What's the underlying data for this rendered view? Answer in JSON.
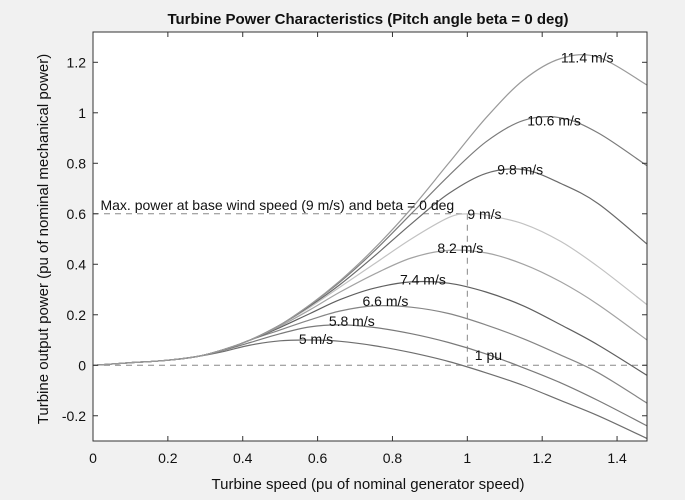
{
  "chart_data": {
    "type": "line",
    "title": "Turbine Power Characteristics (Pitch angle beta = 0 deg)",
    "xlabel": "Turbine speed (pu of nominal generator speed)",
    "ylabel": "Turbine output power (pu of nominal mechanical power)",
    "xlim": [
      0,
      1.48
    ],
    "ylim": [
      -0.3,
      1.32
    ],
    "xticks": [
      0,
      0.2,
      0.4,
      0.6,
      0.8,
      1,
      1.2,
      1.4
    ],
    "xtick_labels": [
      "0",
      "0.2",
      "0.4",
      "0.6",
      "0.8",
      "1",
      "1.2",
      "1.4"
    ],
    "yticks": [
      -0.2,
      0,
      0.2,
      0.4,
      0.6,
      0.8,
      1,
      1.2
    ],
    "ytick_labels": [
      "-0.2",
      "0",
      "0.2",
      "0.4",
      "0.6",
      "0.8",
      "1",
      "1.2"
    ],
    "grid": false,
    "series": [
      {
        "name": "5 m/s",
        "color": "#6e6e6e",
        "x": [
          0,
          0.1,
          0.2,
          0.28,
          0.35,
          0.42,
          0.5,
          0.58,
          0.66,
          0.75,
          0.85,
          0.95,
          1.05,
          1.15,
          1.25,
          1.35,
          1.48
        ],
        "values": [
          0,
          0.01,
          0.02,
          0.035,
          0.055,
          0.08,
          0.097,
          0.1,
          0.095,
          0.078,
          0.05,
          0.015,
          -0.03,
          -0.08,
          -0.14,
          -0.2,
          -0.29
        ]
      },
      {
        "name": "5.8 m/s",
        "color": "#7a7a7a",
        "x": [
          0,
          0.1,
          0.2,
          0.28,
          0.35,
          0.42,
          0.5,
          0.58,
          0.66,
          0.75,
          0.85,
          0.95,
          1.05,
          1.15,
          1.25,
          1.35,
          1.48
        ],
        "values": [
          0,
          0.01,
          0.02,
          0.035,
          0.06,
          0.09,
          0.125,
          0.152,
          0.16,
          0.15,
          0.125,
          0.09,
          0.045,
          -0.01,
          -0.07,
          -0.14,
          -0.24
        ]
      },
      {
        "name": "6.6 m/s",
        "color": "#858585",
        "x": [
          0,
          0.1,
          0.2,
          0.28,
          0.35,
          0.42,
          0.5,
          0.58,
          0.66,
          0.75,
          0.85,
          0.95,
          1.05,
          1.15,
          1.25,
          1.35,
          1.48
        ],
        "values": [
          0,
          0.01,
          0.02,
          0.035,
          0.06,
          0.1,
          0.14,
          0.18,
          0.215,
          0.235,
          0.23,
          0.205,
          0.16,
          0.105,
          0.04,
          -0.03,
          -0.15
        ]
      },
      {
        "name": "7.4 m/s",
        "color": "#5f5f5f",
        "x": [
          0,
          0.1,
          0.2,
          0.28,
          0.35,
          0.42,
          0.5,
          0.58,
          0.66,
          0.75,
          0.85,
          0.95,
          1.05,
          1.15,
          1.25,
          1.35,
          1.48
        ],
        "values": [
          0,
          0.01,
          0.02,
          0.035,
          0.062,
          0.1,
          0.15,
          0.205,
          0.26,
          0.305,
          0.33,
          0.325,
          0.29,
          0.235,
          0.16,
          0.08,
          -0.04
        ]
      },
      {
        "name": "8.2 m/s",
        "color": "#a3a3a3",
        "x": [
          0,
          0.1,
          0.2,
          0.28,
          0.35,
          0.42,
          0.5,
          0.58,
          0.66,
          0.75,
          0.85,
          0.95,
          1.05,
          1.15,
          1.25,
          1.35,
          1.48
        ],
        "values": [
          0,
          0.01,
          0.02,
          0.035,
          0.063,
          0.1,
          0.155,
          0.22,
          0.29,
          0.36,
          0.425,
          0.455,
          0.445,
          0.4,
          0.33,
          0.24,
          0.1
        ]
      },
      {
        "name": "9 m/s",
        "color": "#c2c2c2",
        "x": [
          0,
          0.1,
          0.2,
          0.28,
          0.35,
          0.42,
          0.5,
          0.58,
          0.66,
          0.75,
          0.85,
          0.95,
          1.0,
          1.05,
          1.15,
          1.25,
          1.35,
          1.48
        ],
        "values": [
          0,
          0.01,
          0.02,
          0.035,
          0.063,
          0.1,
          0.16,
          0.23,
          0.31,
          0.4,
          0.5,
          0.585,
          0.6,
          0.595,
          0.56,
          0.49,
          0.39,
          0.24
        ]
      },
      {
        "name": "9.8 m/s",
        "color": "#6a6a6a",
        "x": [
          0,
          0.1,
          0.2,
          0.28,
          0.35,
          0.42,
          0.5,
          0.58,
          0.66,
          0.75,
          0.85,
          0.95,
          1.05,
          1.15,
          1.25,
          1.35,
          1.48
        ],
        "values": [
          0,
          0.01,
          0.02,
          0.035,
          0.063,
          0.1,
          0.16,
          0.235,
          0.32,
          0.43,
          0.56,
          0.68,
          0.76,
          0.775,
          0.72,
          0.64,
          0.48
        ]
      },
      {
        "name": "10.6 m/s",
        "color": "#7b7b7b",
        "x": [
          0,
          0.1,
          0.2,
          0.28,
          0.35,
          0.42,
          0.5,
          0.58,
          0.66,
          0.75,
          0.85,
          0.95,
          1.05,
          1.15,
          1.25,
          1.35,
          1.48
        ],
        "values": [
          0,
          0.01,
          0.02,
          0.035,
          0.063,
          0.1,
          0.16,
          0.24,
          0.33,
          0.45,
          0.6,
          0.75,
          0.885,
          0.97,
          0.98,
          0.92,
          0.79
        ]
      },
      {
        "name": "11.4 m/s",
        "color": "#9a9a9a",
        "x": [
          0,
          0.1,
          0.2,
          0.28,
          0.35,
          0.42,
          0.5,
          0.58,
          0.66,
          0.75,
          0.85,
          0.95,
          1.05,
          1.15,
          1.25,
          1.35,
          1.48
        ],
        "values": [
          0,
          0.01,
          0.02,
          0.035,
          0.063,
          0.1,
          0.16,
          0.24,
          0.335,
          0.46,
          0.62,
          0.8,
          0.98,
          1.13,
          1.215,
          1.22,
          1.11
        ]
      }
    ],
    "curve_labels": [
      {
        "text": "5 m/s",
        "x": 0.55,
        "y": 0.085
      },
      {
        "text": "5.8 m/s",
        "x": 0.63,
        "y": 0.155
      },
      {
        "text": "6.6 m/s",
        "x": 0.72,
        "y": 0.235
      },
      {
        "text": "7.4 m/s",
        "x": 0.82,
        "y": 0.32
      },
      {
        "text": "8.2 m/s",
        "x": 0.92,
        "y": 0.445
      },
      {
        "text": "9 m/s",
        "x": 1.0,
        "y": 0.58
      },
      {
        "text": "9.8 m/s",
        "x": 1.08,
        "y": 0.755
      },
      {
        "text": "10.6 m/s",
        "x": 1.16,
        "y": 0.95
      },
      {
        "text": "11.4 m/s",
        "x": 1.25,
        "y": 1.2
      }
    ],
    "annotations": [
      {
        "text": "Max. power at base wind speed (9 m/s) and beta = 0 deg",
        "x": 0.02,
        "y": 0.615
      },
      {
        "text": "1 pu",
        "x": 1.02,
        "y": 0.02
      }
    ],
    "reference_lines": {
      "max_power": 0.6,
      "rated_speed": 1.0,
      "zero_power": 0
    }
  }
}
